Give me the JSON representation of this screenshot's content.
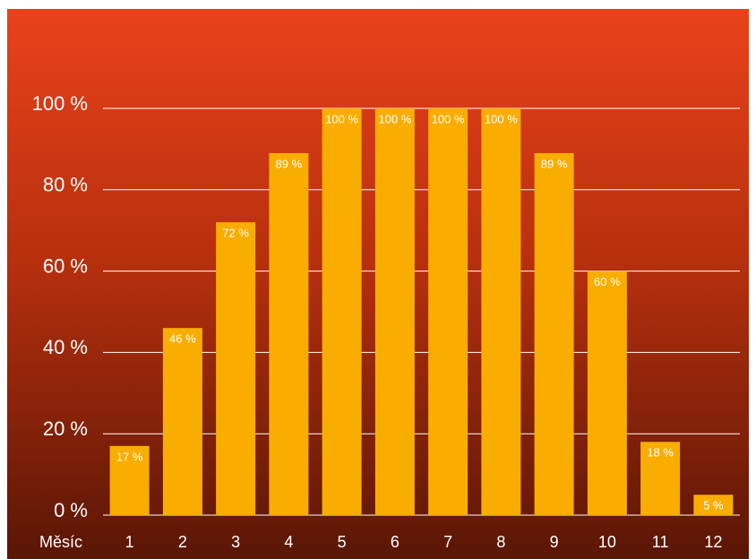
{
  "chart_data": {
    "type": "bar",
    "x_label": "Měsíc",
    "categories": [
      "1",
      "2",
      "3",
      "4",
      "5",
      "6",
      "7",
      "8",
      "9",
      "10",
      "11",
      "12"
    ],
    "values": [
      17,
      46,
      72,
      89,
      100,
      100,
      100,
      100,
      89,
      60,
      18,
      5
    ],
    "value_labels": [
      "17 %",
      "46 %",
      "72 %",
      "89 %",
      "100 %",
      "100 %",
      "100 %",
      "100 %",
      "89 %",
      "60 %",
      "18 %",
      "5 %"
    ],
    "color": "#f8ad00",
    "ylim": [
      0,
      100
    ],
    "yticks": [
      {
        "value": 0,
        "label": "0 %"
      },
      {
        "value": 20,
        "label": "20 %"
      },
      {
        "value": 40,
        "label": "40 %"
      },
      {
        "value": 60,
        "label": "60 %"
      },
      {
        "value": 80,
        "label": "80 %"
      },
      {
        "value": 100,
        "label": "100 %"
      }
    ],
    "grid": true
  }
}
